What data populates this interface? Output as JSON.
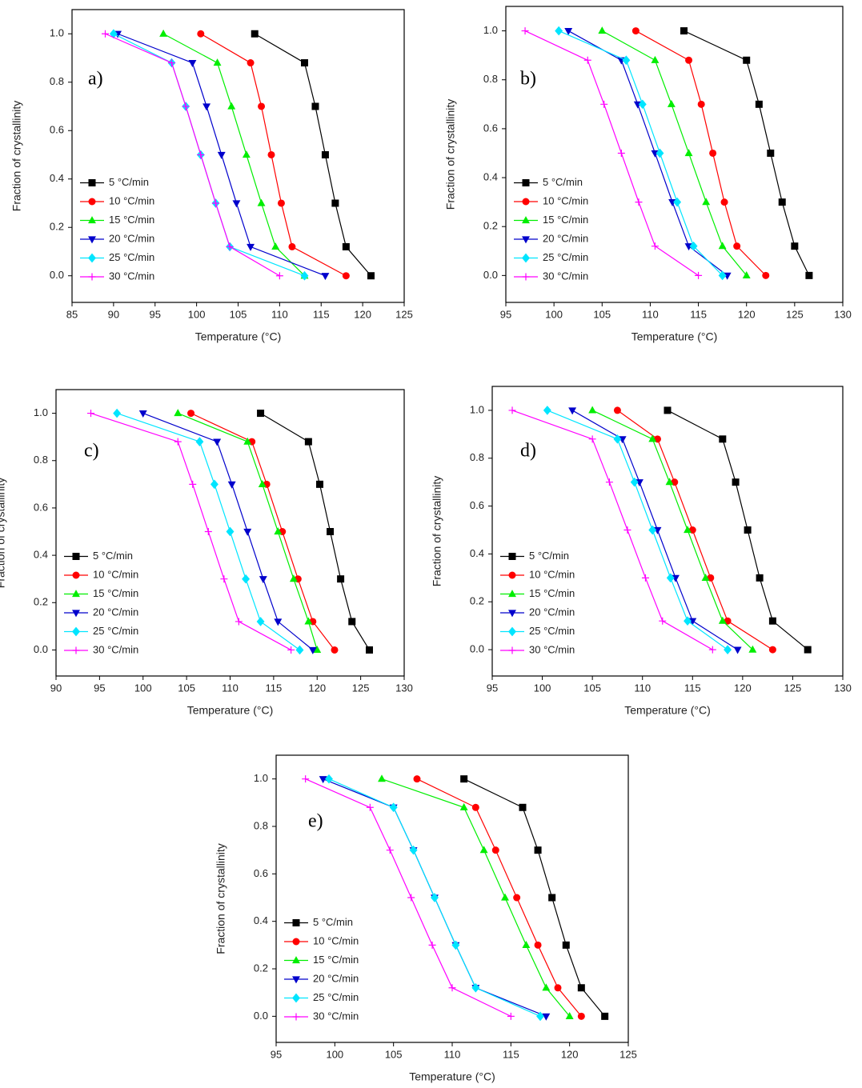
{
  "chart_data": [
    {
      "type": "line",
      "label": "a)",
      "x_label": "Temperature (°C)",
      "y_label": "Fraction of crystallinity",
      "xlim": [
        85,
        125
      ],
      "ylim": [
        -0.11,
        1.1
      ],
      "xticks": [
        85,
        90,
        95,
        100,
        105,
        110,
        115,
        120,
        125
      ],
      "yticks": [
        {
          "value": 0,
          "label": "0.0"
        },
        0.2,
        0.4,
        0.6,
        0.8,
        {
          "value": 1,
          "label": "1.0"
        }
      ],
      "legend": "lower left",
      "series": [
        {
          "name": "5 °C/min",
          "color": "#000000",
          "marker": "square",
          "x": [
            107,
            113,
            114.3,
            115.5,
            116.7,
            118,
            121
          ],
          "values": [
            1,
            0.88,
            0.7,
            0.5,
            0.3,
            0.12,
            0
          ]
        },
        {
          "name": "10 °C/min",
          "color": "#ff0000",
          "marker": "circle",
          "x": [
            100.5,
            106.5,
            107.8,
            109,
            110.2,
            111.5,
            118
          ],
          "values": [
            1,
            0.88,
            0.7,
            0.5,
            0.3,
            0.12,
            0
          ]
        },
        {
          "name": "15 °C/min",
          "color": "#00ee00",
          "marker": "triangle-up",
          "x": [
            96,
            102.5,
            104.2,
            106,
            107.8,
            109.5,
            113
          ],
          "values": [
            1,
            0.88,
            0.7,
            0.5,
            0.3,
            0.12,
            0
          ]
        },
        {
          "name": "20 °C/min",
          "color": "#0000cc",
          "marker": "triangle-down",
          "x": [
            90.5,
            99.5,
            101.2,
            103,
            104.8,
            106.5,
            115.5
          ],
          "values": [
            1,
            0.88,
            0.7,
            0.5,
            0.3,
            0.12,
            0
          ]
        },
        {
          "name": "25 °C/min",
          "color": "#00e5ff",
          "marker": "diamond",
          "x": [
            90,
            97,
            98.7,
            100.5,
            102.3,
            104,
            113
          ],
          "values": [
            1,
            0.88,
            0.7,
            0.5,
            0.3,
            0.12,
            0
          ]
        },
        {
          "name": "30 °C/min",
          "color": "#ff00ff",
          "marker": "plus",
          "x": [
            89,
            97,
            98.7,
            100.5,
            102.3,
            104,
            110
          ],
          "values": [
            1,
            0.88,
            0.7,
            0.5,
            0.3,
            0.12,
            0
          ]
        }
      ]
    },
    {
      "type": "line",
      "label": "b)",
      "x_label": "Temperature (°C)",
      "y_label": "Fraction of crystallinity",
      "xlim": [
        95,
        130
      ],
      "ylim": [
        -0.11,
        1.1
      ],
      "xticks": [
        95,
        100,
        105,
        110,
        115,
        120,
        125,
        130
      ],
      "yticks": [
        {
          "value": 0,
          "label": "0.0"
        },
        0.2,
        0.4,
        0.6,
        0.8,
        {
          "value": 1,
          "label": "1.0"
        }
      ],
      "legend": "lower left",
      "series": [
        {
          "name": "5 °C/min",
          "color": "#000000",
          "marker": "square",
          "x": [
            113.5,
            120,
            121.3,
            122.5,
            123.7,
            125,
            126.5
          ],
          "values": [
            1,
            0.88,
            0.7,
            0.5,
            0.3,
            0.12,
            0
          ]
        },
        {
          "name": "10 °C/min",
          "color": "#ff0000",
          "marker": "circle",
          "x": [
            108.5,
            114,
            115.3,
            116.5,
            117.7,
            119,
            122
          ],
          "values": [
            1,
            0.88,
            0.7,
            0.5,
            0.3,
            0.12,
            0
          ]
        },
        {
          "name": "15 °C/min",
          "color": "#00ee00",
          "marker": "triangle-up",
          "x": [
            105,
            110.5,
            112.2,
            114,
            115.8,
            117.5,
            120
          ],
          "values": [
            1,
            0.88,
            0.7,
            0.5,
            0.3,
            0.12,
            0
          ]
        },
        {
          "name": "20 °C/min",
          "color": "#0000cc",
          "marker": "triangle-down",
          "x": [
            101.5,
            107,
            108.7,
            110.5,
            112.3,
            114,
            118
          ],
          "values": [
            1,
            0.88,
            0.7,
            0.5,
            0.3,
            0.12,
            0
          ]
        },
        {
          "name": "25 °C/min",
          "color": "#00e5ff",
          "marker": "diamond",
          "x": [
            100.5,
            107.5,
            109.2,
            111,
            112.8,
            114.5,
            117.5
          ],
          "values": [
            1,
            0.88,
            0.7,
            0.5,
            0.3,
            0.12,
            0
          ]
        },
        {
          "name": "30 °C/min",
          "color": "#ff00ff",
          "marker": "plus",
          "x": [
            97,
            103.5,
            105.2,
            107,
            108.8,
            110.5,
            115
          ],
          "values": [
            1,
            0.88,
            0.7,
            0.5,
            0.3,
            0.12,
            0
          ]
        }
      ]
    },
    {
      "type": "line",
      "label": "c)",
      "x_label": "Temperature (°C)",
      "y_label": "Fraction of crystallinity",
      "xlim": [
        90,
        130
      ],
      "ylim": [
        -0.11,
        1.1
      ],
      "xticks": [
        90,
        95,
        100,
        105,
        110,
        115,
        120,
        125,
        130
      ],
      "yticks": [
        {
          "value": 0,
          "label": "0.0"
        },
        0.2,
        0.4,
        0.6,
        0.8,
        {
          "value": 1,
          "label": "1.0"
        }
      ],
      "legend": "lower left",
      "series": [
        {
          "name": "5 °C/min",
          "color": "#000000",
          "marker": "square",
          "x": [
            113.5,
            119,
            120.3,
            121.5,
            122.7,
            124,
            126
          ],
          "values": [
            1,
            0.88,
            0.7,
            0.5,
            0.3,
            0.12,
            0
          ]
        },
        {
          "name": "10 °C/min",
          "color": "#ff0000",
          "marker": "circle",
          "x": [
            105.5,
            112.5,
            114.2,
            116,
            117.8,
            119.5,
            122
          ],
          "values": [
            1,
            0.88,
            0.7,
            0.5,
            0.3,
            0.12,
            0
          ]
        },
        {
          "name": "15 °C/min",
          "color": "#00ee00",
          "marker": "triangle-up",
          "x": [
            104,
            112,
            113.7,
            115.5,
            117.3,
            119,
            120
          ],
          "values": [
            1,
            0.88,
            0.7,
            0.5,
            0.3,
            0.12,
            0
          ]
        },
        {
          "name": "20 °C/min",
          "color": "#0000cc",
          "marker": "triangle-down",
          "x": [
            100,
            108.5,
            110.2,
            112,
            113.8,
            115.5,
            119.5
          ],
          "values": [
            1,
            0.88,
            0.7,
            0.5,
            0.3,
            0.12,
            0
          ]
        },
        {
          "name": "25 °C/min",
          "color": "#00e5ff",
          "marker": "diamond",
          "x": [
            97,
            106.5,
            108.2,
            110,
            111.8,
            113.5,
            118
          ],
          "values": [
            1,
            0.88,
            0.7,
            0.5,
            0.3,
            0.12,
            0
          ]
        },
        {
          "name": "30 °C/min",
          "color": "#ff00ff",
          "marker": "plus",
          "x": [
            94,
            104,
            105.7,
            107.5,
            109.3,
            111,
            117
          ],
          "values": [
            1,
            0.88,
            0.7,
            0.5,
            0.3,
            0.12,
            0
          ]
        }
      ]
    },
    {
      "type": "line",
      "label": "d)",
      "x_label": "Temperature (°C)",
      "y_label": "Fraction of crystallinity",
      "xlim": [
        95,
        130
      ],
      "ylim": [
        -0.11,
        1.1
      ],
      "xticks": [
        95,
        100,
        105,
        110,
        115,
        120,
        125,
        130
      ],
      "yticks": [
        {
          "value": 0,
          "label": "0.0"
        },
        0.2,
        0.4,
        0.6,
        0.8,
        {
          "value": 1,
          "label": "1.0"
        }
      ],
      "legend": "lower left",
      "series": [
        {
          "name": "5 °C/min",
          "color": "#000000",
          "marker": "square",
          "x": [
            112.5,
            118,
            119.3,
            120.5,
            121.7,
            123,
            126.5
          ],
          "values": [
            1,
            0.88,
            0.7,
            0.5,
            0.3,
            0.12,
            0
          ]
        },
        {
          "name": "10 °C/min",
          "color": "#ff0000",
          "marker": "circle",
          "x": [
            107.5,
            111.5,
            113.2,
            115,
            116.8,
            118.5,
            123
          ],
          "values": [
            1,
            0.88,
            0.7,
            0.5,
            0.3,
            0.12,
            0
          ]
        },
        {
          "name": "15 °C/min",
          "color": "#00ee00",
          "marker": "triangle-up",
          "x": [
            105,
            111,
            112.7,
            114.5,
            116.3,
            118,
            121
          ],
          "values": [
            1,
            0.88,
            0.7,
            0.5,
            0.3,
            0.12,
            0
          ]
        },
        {
          "name": "20 °C/min",
          "color": "#0000cc",
          "marker": "triangle-down",
          "x": [
            103,
            108,
            109.7,
            111.5,
            113.3,
            115,
            119.5
          ],
          "values": [
            1,
            0.88,
            0.7,
            0.5,
            0.3,
            0.12,
            0
          ]
        },
        {
          "name": "25 °C/min",
          "color": "#00e5ff",
          "marker": "diamond",
          "x": [
            100.5,
            107.5,
            109.2,
            111,
            112.8,
            114.5,
            118.5
          ],
          "values": [
            1,
            0.88,
            0.7,
            0.5,
            0.3,
            0.12,
            0
          ]
        },
        {
          "name": "30 °C/min",
          "color": "#ff00ff",
          "marker": "plus",
          "x": [
            97,
            105,
            106.7,
            108.5,
            110.3,
            112,
            117
          ],
          "values": [
            1,
            0.88,
            0.7,
            0.5,
            0.3,
            0.12,
            0
          ]
        }
      ]
    },
    {
      "type": "line",
      "label": "e)",
      "x_label": "Temperature (°C)",
      "y_label": "Fraction of crystallinity",
      "xlim": [
        95,
        125
      ],
      "ylim": [
        -0.11,
        1.1
      ],
      "xticks": [
        95,
        100,
        105,
        110,
        115,
        120,
        125
      ],
      "yticks": [
        {
          "value": 0,
          "label": "0.0"
        },
        0.2,
        0.4,
        0.6,
        0.8,
        {
          "value": 1,
          "label": "1.0"
        }
      ],
      "legend": "lower left",
      "series": [
        {
          "name": "5 °C/min",
          "color": "#000000",
          "marker": "square",
          "x": [
            111,
            116,
            117.3,
            118.5,
            119.7,
            121,
            123
          ],
          "values": [
            1,
            0.88,
            0.7,
            0.5,
            0.3,
            0.12,
            0
          ]
        },
        {
          "name": "10 °C/min",
          "color": "#ff0000",
          "marker": "circle",
          "x": [
            107,
            112,
            113.7,
            115.5,
            117.3,
            119,
            121
          ],
          "values": [
            1,
            0.88,
            0.7,
            0.5,
            0.3,
            0.12,
            0
          ]
        },
        {
          "name": "15 °C/min",
          "color": "#00ee00",
          "marker": "triangle-up",
          "x": [
            104,
            111,
            112.7,
            114.5,
            116.3,
            118,
            120
          ],
          "values": [
            1,
            0.88,
            0.7,
            0.5,
            0.3,
            0.12,
            0
          ]
        },
        {
          "name": "20 °C/min",
          "color": "#0000cc",
          "marker": "triangle-down",
          "x": [
            99,
            105,
            106.7,
            108.5,
            110.3,
            112,
            118
          ],
          "values": [
            1,
            0.88,
            0.7,
            0.5,
            0.3,
            0.12,
            0
          ]
        },
        {
          "name": "25 °C/min",
          "color": "#00e5ff",
          "marker": "diamond",
          "x": [
            99.5,
            105,
            106.7,
            108.5,
            110.3,
            112,
            117.5
          ],
          "values": [
            1,
            0.88,
            0.7,
            0.5,
            0.3,
            0.12,
            0
          ]
        },
        {
          "name": "30 °C/min",
          "color": "#ff00ff",
          "marker": "plus",
          "x": [
            97.5,
            103,
            104.7,
            106.5,
            108.3,
            110,
            115
          ],
          "values": [
            1,
            0.88,
            0.7,
            0.5,
            0.3,
            0.12,
            0
          ]
        }
      ]
    }
  ]
}
